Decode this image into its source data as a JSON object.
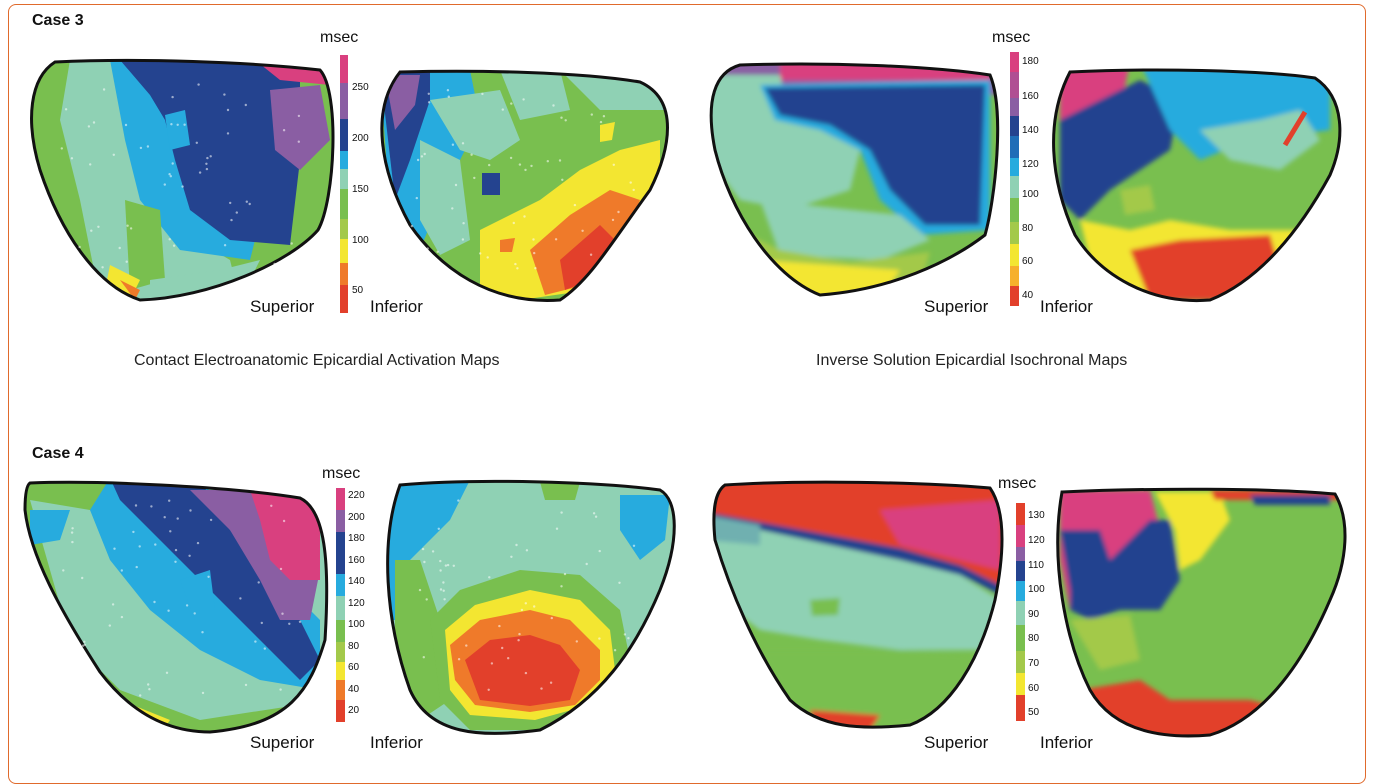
{
  "case3": {
    "label": "Case 3",
    "contact": {
      "unit": "msec",
      "ticks": [
        "250",
        "200",
        "150",
        "100",
        "50"
      ],
      "superior": "Superior",
      "inferior": "Inferior",
      "caption": "Contact Electroanatomic Epicardial Activation Maps"
    },
    "inverse": {
      "unit": "msec",
      "ticks": [
        "180",
        "160",
        "140",
        "120",
        "100",
        "80",
        "60",
        "40"
      ],
      "superior": "Superior",
      "inferior": "Inferior",
      "caption": "Inverse Solution Epicardial Isochronal Maps"
    }
  },
  "case4": {
    "label": "Case 4",
    "contact": {
      "unit": "msec",
      "ticks": [
        "220",
        "200",
        "180",
        "160",
        "140",
        "120",
        "100",
        "80",
        "60",
        "40",
        "20"
      ],
      "superior": "Superior",
      "inferior": "Inferior"
    },
    "inverse": {
      "unit": "msec",
      "ticks": [
        "130",
        "120",
        "110",
        "100",
        "90",
        "80",
        "70",
        "60",
        "50"
      ],
      "superior": "Superior",
      "inferior": "Inferior"
    }
  },
  "colors": {
    "red": "#e2402b",
    "orange": "#ef7a2a",
    "yellow": "#f3e631",
    "lightgreen": "#a3c94a",
    "green": "#79bf4f",
    "mint": "#8fd1b4",
    "cyan": "#27abde",
    "navy": "#24438f",
    "purple": "#8a5ea3",
    "magenta": "#d9407f"
  }
}
